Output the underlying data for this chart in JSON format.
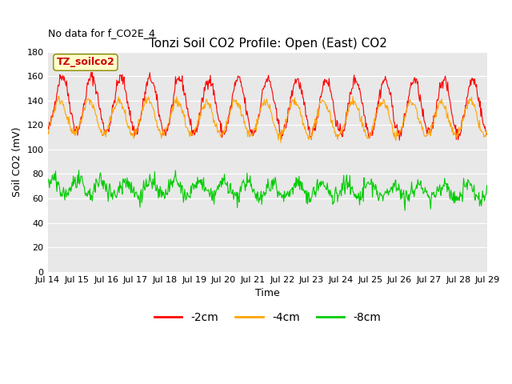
{
  "title": "Tonzi Soil CO2 Profile: Open (East) CO2",
  "subtitle": "No data for f_CO2E_4",
  "ylabel": "Soil CO2 (mV)",
  "xlabel": "Time",
  "legend_label": "TZ_soilco2",
  "series_labels": [
    "-2cm",
    "-4cm",
    "-8cm"
  ],
  "series_colors": [
    "#ff0000",
    "#ffa500",
    "#00cc00"
  ],
  "ylim": [
    0,
    180
  ],
  "yticks": [
    0,
    20,
    40,
    60,
    80,
    100,
    120,
    140,
    160,
    180
  ],
  "xtick_labels": [
    "Jul 14",
    "Jul 15",
    "Jul 16",
    "Jul 17",
    "Jul 18",
    "Jul 19",
    "Jul 20",
    "Jul 21",
    "Jul 22",
    "Jul 23",
    "Jul 24",
    "Jul 25",
    "Jul 26",
    "Jul 27",
    "Jul 28",
    "Jul 29"
  ],
  "fig_bg_color": "#ffffff",
  "plot_bg_color": "#e8e8e8",
  "grid_color": "#ffffff",
  "n_days": 15,
  "points_per_day": 48,
  "red_base": 135,
  "red_amp": 22,
  "orange_base": 125,
  "orange_amp": 14,
  "green_base": 69,
  "green_amp": 6,
  "title_fontsize": 11,
  "subtitle_fontsize": 9,
  "axis_fontsize": 9,
  "tick_fontsize": 8
}
